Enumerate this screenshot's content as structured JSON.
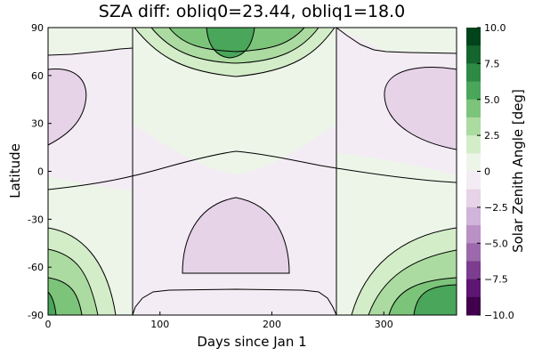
{
  "chart_data": {
    "type": "heatmap",
    "title": "SZA diff: obliq0=23.44, obliq1=18.0",
    "xlabel": "Days since Jan 1",
    "ylabel": "Latitude",
    "colorbar_label": "Solar Zenith Angle [deg]",
    "xlim": [
      0,
      365
    ],
    "ylim": [
      -90,
      90
    ],
    "x_ticks": [
      0,
      100,
      200,
      300
    ],
    "x_tick_labels": [
      "0",
      "100",
      "200",
      "300"
    ],
    "y_ticks": [
      90,
      60,
      30,
      0,
      -30,
      -60,
      -90
    ],
    "y_tick_labels": [
      "90",
      "60",
      "30",
      "0",
      "-30",
      "-60",
      "-90"
    ],
    "colorbar_range": [
      -10,
      10
    ],
    "colorbar_ticks": [
      10,
      7.5,
      5,
      2.5,
      0,
      -2.5,
      -5,
      -7.5,
      -10
    ],
    "colorbar_tick_labels": [
      "10.0",
      "7.5",
      "5.0",
      "2.5",
      "0",
      "−2.5",
      "−5.0",
      "−7.5",
      "−10.0"
    ],
    "colorbar_levels": [
      {
        "from": 8.75,
        "to": 10.0,
        "color": "#00441b"
      },
      {
        "from": 7.5,
        "to": 8.75,
        "color": "#15652e"
      },
      {
        "from": 6.25,
        "to": 7.5,
        "color": "#2d8a44"
      },
      {
        "from": 5.0,
        "to": 6.25,
        "color": "#4aa65a"
      },
      {
        "from": 3.75,
        "to": 5.0,
        "color": "#7dc47b"
      },
      {
        "from": 2.5,
        "to": 3.75,
        "color": "#abdba0"
      },
      {
        "from": 1.25,
        "to": 2.5,
        "color": "#d3edc9"
      },
      {
        "from": 0.0,
        "to": 1.25,
        "color": "#edf5e9"
      },
      {
        "from": -1.25,
        "to": 0.0,
        "color": "#f3ecf4"
      },
      {
        "from": -2.5,
        "to": -1.25,
        "color": "#e6d3e8"
      },
      {
        "from": -3.75,
        "to": -2.5,
        "color": "#d0b4d9"
      },
      {
        "from": -5.0,
        "to": -3.75,
        "color": "#b991c5"
      },
      {
        "from": -6.25,
        "to": -5.0,
        "color": "#9c6aac"
      },
      {
        "from": -7.5,
        "to": -6.25,
        "color": "#7c3c8f"
      },
      {
        "from": -8.75,
        "to": -7.5,
        "color": "#5d1673"
      },
      {
        "from": -10.0,
        "to": -8.75,
        "color": "#40004b"
      }
    ]
  }
}
